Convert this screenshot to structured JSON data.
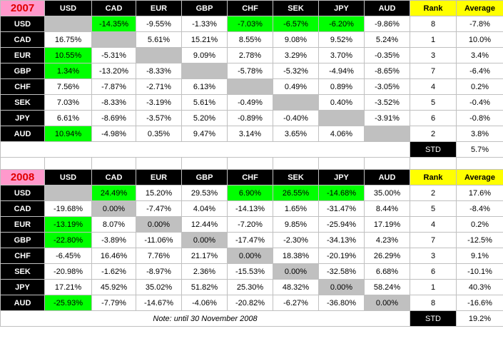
{
  "currencies": [
    "USD",
    "CAD",
    "EUR",
    "GBP",
    "CHF",
    "SEK",
    "JPY",
    "AUD"
  ],
  "rank_label": "Rank",
  "average_label": "Average",
  "std_label": "STD",
  "tables": [
    {
      "year": "2007",
      "rows": [
        {
          "name": "USD",
          "cells": [
            "",
            "-14.35%",
            "-9.55%",
            "-1.33%",
            "-7.03%",
            "-6.57%",
            "-6.20%",
            "-9.86%"
          ],
          "rank": "8",
          "average": "-7.8%"
        },
        {
          "name": "CAD",
          "cells": [
            "16.75%",
            "",
            "5.61%",
            "15.21%",
            "8.55%",
            "9.08%",
            "9.52%",
            "5.24%"
          ],
          "rank": "1",
          "average": "10.0%"
        },
        {
          "name": "EUR",
          "cells": [
            "10.55%",
            "-5.31%",
            "",
            "9.09%",
            "2.78%",
            "3.29%",
            "3.70%",
            "-0.35%"
          ],
          "rank": "3",
          "average": "3.4%"
        },
        {
          "name": "GBP",
          "cells": [
            "1.34%",
            "-13.20%",
            "-8.33%",
            "",
            "-5.78%",
            "-5.32%",
            "-4.94%",
            "-8.65%"
          ],
          "rank": "7",
          "average": "-6.4%"
        },
        {
          "name": "CHF",
          "cells": [
            "7.56%",
            "-7.87%",
            "-2.71%",
            "6.13%",
            "",
            "0.49%",
            "0.89%",
            "-3.05%"
          ],
          "rank": "4",
          "average": "0.2%"
        },
        {
          "name": "SEK",
          "cells": [
            "7.03%",
            "-8.33%",
            "-3.19%",
            "5.61%",
            "-0.49%",
            "",
            "0.40%",
            "-3.52%"
          ],
          "rank": "5",
          "average": "-0.4%"
        },
        {
          "name": "JPY",
          "cells": [
            "6.61%",
            "-8.69%",
            "-3.57%",
            "5.20%",
            "-0.89%",
            "-0.40%",
            "",
            "-3.91%"
          ],
          "rank": "6",
          "average": "-0.8%"
        },
        {
          "name": "AUD",
          "cells": [
            "10.94%",
            "-4.98%",
            "0.35%",
            "9.47%",
            "3.14%",
            "3.65%",
            "4.06%",
            ""
          ],
          "rank": "2",
          "average": "3.8%"
        }
      ],
      "green": [
        [
          0,
          1
        ],
        [
          0,
          4
        ],
        [
          0,
          5
        ],
        [
          0,
          6
        ],
        [
          2,
          0
        ],
        [
          3,
          0
        ],
        [
          7,
          0
        ]
      ],
      "gray": [
        [
          0,
          0
        ],
        [
          1,
          1
        ],
        [
          2,
          2
        ],
        [
          3,
          3
        ],
        [
          4,
          4
        ],
        [
          5,
          5
        ],
        [
          6,
          6
        ],
        [
          7,
          7
        ]
      ],
      "std": "5.7%",
      "note": ""
    },
    {
      "year": "2008",
      "rows": [
        {
          "name": "USD",
          "cells": [
            "",
            "24.49%",
            "15.20%",
            "29.53%",
            "6.90%",
            "26.55%",
            "-14.68%",
            "35.00%"
          ],
          "rank": "2",
          "average": "17.6%"
        },
        {
          "name": "CAD",
          "cells": [
            "-19.68%",
            "0.00%",
            "-7.47%",
            "4.04%",
            "-14.13%",
            "1.65%",
            "-31.47%",
            "8.44%"
          ],
          "rank": "5",
          "average": "-8.4%"
        },
        {
          "name": "EUR",
          "cells": [
            "-13.19%",
            "8.07%",
            "0.00%",
            "12.44%",
            "-7.20%",
            "9.85%",
            "-25.94%",
            "17.19%"
          ],
          "rank": "4",
          "average": "0.2%"
        },
        {
          "name": "GBP",
          "cells": [
            "-22.80%",
            "-3.89%",
            "-11.06%",
            "0.00%",
            "-17.47%",
            "-2.30%",
            "-34.13%",
            "4.23%"
          ],
          "rank": "7",
          "average": "-12.5%"
        },
        {
          "name": "CHF",
          "cells": [
            "-6.45%",
            "16.46%",
            "7.76%",
            "21.17%",
            "0.00%",
            "18.38%",
            "-20.19%",
            "26.29%"
          ],
          "rank": "3",
          "average": "9.1%"
        },
        {
          "name": "SEK",
          "cells": [
            "-20.98%",
            "-1.62%",
            "-8.97%",
            "2.36%",
            "-15.53%",
            "0.00%",
            "-32.58%",
            "6.68%"
          ],
          "rank": "6",
          "average": "-10.1%"
        },
        {
          "name": "JPY",
          "cells": [
            "17.21%",
            "45.92%",
            "35.02%",
            "51.82%",
            "25.30%",
            "48.32%",
            "0.00%",
            "58.24%"
          ],
          "rank": "1",
          "average": "40.3%"
        },
        {
          "name": "AUD",
          "cells": [
            "-25.93%",
            "-7.79%",
            "-14.67%",
            "-4.06%",
            "-20.82%",
            "-6.27%",
            "-36.80%",
            "0.00%"
          ],
          "rank": "8",
          "average": "-16.6%"
        }
      ],
      "green": [
        [
          0,
          1
        ],
        [
          0,
          4
        ],
        [
          0,
          5
        ],
        [
          0,
          6
        ],
        [
          2,
          0
        ],
        [
          3,
          0
        ],
        [
          7,
          0
        ]
      ],
      "gray": [
        [
          0,
          0
        ],
        [
          1,
          1
        ],
        [
          2,
          2
        ],
        [
          3,
          3
        ],
        [
          4,
          4
        ],
        [
          5,
          5
        ],
        [
          6,
          6
        ],
        [
          7,
          7
        ]
      ],
      "std": "19.2%",
      "note": "Note: until 30 November 2008"
    }
  ]
}
